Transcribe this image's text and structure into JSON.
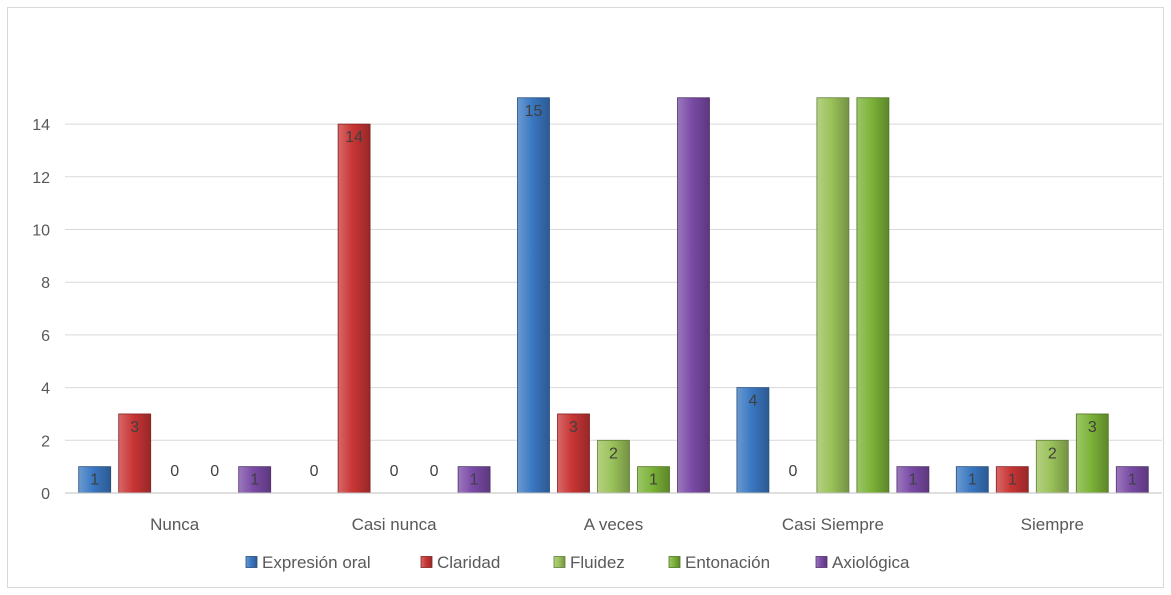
{
  "chart_data": {
    "type": "bar",
    "title": "",
    "xlabel": "",
    "ylabel": "",
    "ylim": [
      0,
      15
    ],
    "yticks": [
      0,
      2,
      4,
      6,
      8,
      10,
      12,
      14
    ],
    "grid": true,
    "legend_position": "bottom",
    "categories": [
      "Nunca",
      "Casi nunca",
      "A veces",
      "Casi Siempre",
      "Siempre"
    ],
    "series": [
      {
        "name": "Expresión oral",
        "color": "#3a78c2",
        "values": [
          1,
          0,
          15,
          4,
          1
        ]
      },
      {
        "name": "Claridad",
        "color": "#c93535",
        "values": [
          3,
          14,
          3,
          0,
          1
        ]
      },
      {
        "name": "Fluidez",
        "color": "#9bc25a",
        "values": [
          0,
          0,
          2,
          15,
          2
        ]
      },
      {
        "name": "Entonación",
        "color": "#7cb338",
        "values": [
          0,
          0,
          1,
          15,
          3
        ]
      },
      {
        "name": "Axiológica",
        "color": "#7a4ba6",
        "values": [
          1,
          1,
          15,
          1,
          1
        ]
      }
    ],
    "data_labels": [
      [
        "1",
        "3",
        "0",
        "0",
        "1"
      ],
      [
        "0",
        "14",
        "0",
        "0",
        "1"
      ],
      [
        "15",
        "3",
        "2",
        "1",
        ""
      ],
      [
        "4",
        "0",
        "",
        "",
        "1"
      ],
      [
        "1",
        "1",
        "2",
        "3",
        "1"
      ]
    ]
  }
}
